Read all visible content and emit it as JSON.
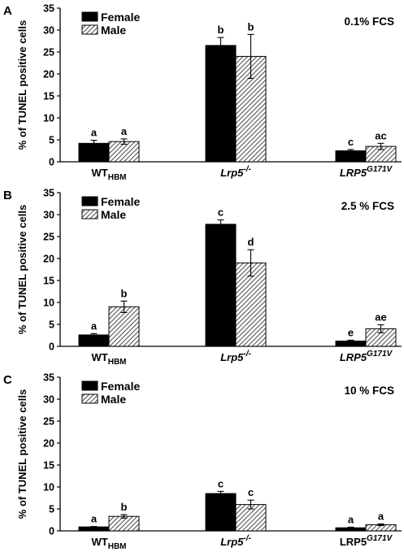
{
  "chart_data": [
    {
      "type": "bar",
      "panel": "A",
      "condition": "0.1% FCS",
      "ylabel": "% of TUNEL positive cells",
      "ylim": [
        0,
        35
      ],
      "yticks": [
        "0",
        "5",
        "10",
        "15",
        "20",
        "25",
        "30",
        "35"
      ],
      "categories": [
        {
          "base": "WT",
          "sub": "HBM",
          "sup": "",
          "italic": false
        },
        {
          "base": "Lrp5",
          "sub": "",
          "sup": "-/-",
          "italic": true
        },
        {
          "base": "LRP5",
          "sub": "",
          "sup": "G171V",
          "italic": true
        }
      ],
      "series": [
        {
          "name": "Female",
          "color": "#000000",
          "values": [
            4.2,
            26.5,
            2.5
          ],
          "errors": [
            0.7,
            1.8,
            0.3
          ],
          "letters": [
            "a",
            "b",
            "c"
          ]
        },
        {
          "name": "Male",
          "pattern": "hatch",
          "values": [
            4.6,
            24.0,
            3.5
          ],
          "errors": [
            0.6,
            5.0,
            0.7
          ],
          "letters": [
            "a",
            "b",
            "ac"
          ]
        }
      ],
      "legend": "top-left"
    },
    {
      "type": "bar",
      "panel": "B",
      "condition": "2.5 % FCS",
      "ylabel": "% of TUNEL positive cells",
      "ylim": [
        0,
        35
      ],
      "yticks": [
        "0",
        "5",
        "10",
        "15",
        "20",
        "25",
        "30",
        "35"
      ],
      "categories": [
        {
          "base": "WT",
          "sub": "HBM",
          "sup": "",
          "italic": false
        },
        {
          "base": "Lrp5",
          "sub": "",
          "sup": "-/-",
          "italic": true
        },
        {
          "base": "LRP5",
          "sub": "",
          "sup": "G171V",
          "italic": true
        }
      ],
      "series": [
        {
          "name": "Female",
          "color": "#000000",
          "values": [
            2.6,
            27.8,
            1.2
          ],
          "errors": [
            0.3,
            1.0,
            0.2
          ],
          "letters": [
            "a",
            "c",
            "e"
          ]
        },
        {
          "name": "Male",
          "pattern": "hatch",
          "values": [
            9.0,
            19.0,
            4.0
          ],
          "errors": [
            1.3,
            3.0,
            0.9
          ],
          "letters": [
            "b",
            "d",
            "ae"
          ]
        }
      ],
      "legend": "top-left"
    },
    {
      "type": "bar",
      "panel": "C",
      "condition": "10 % FCS",
      "ylabel": "% of TUNEL positive cells",
      "ylim": [
        0,
        35
      ],
      "yticks": [
        "0",
        "5",
        "10",
        "15",
        "20",
        "25",
        "30",
        "35"
      ],
      "categories": [
        {
          "base": "WT",
          "sub": "HBM",
          "sup": "",
          "italic": false
        },
        {
          "base": "Lrp5",
          "sub": "",
          "sup": "-/-",
          "italic": true
        },
        {
          "base": "LRP5",
          "sub": "",
          "sup": "G171V",
          "italic": false
        }
      ],
      "series": [
        {
          "name": "Female",
          "color": "#000000",
          "values": [
            0.9,
            8.5,
            0.7
          ],
          "errors": [
            0.1,
            0.5,
            0.15
          ],
          "letters": [
            "a",
            "c",
            "a"
          ]
        },
        {
          "name": "Male",
          "pattern": "hatch",
          "values": [
            3.3,
            6.0,
            1.4
          ],
          "errors": [
            0.4,
            1.0,
            0.2
          ],
          "letters": [
            "b",
            "c",
            "a"
          ]
        }
      ],
      "legend": "top-left"
    }
  ]
}
